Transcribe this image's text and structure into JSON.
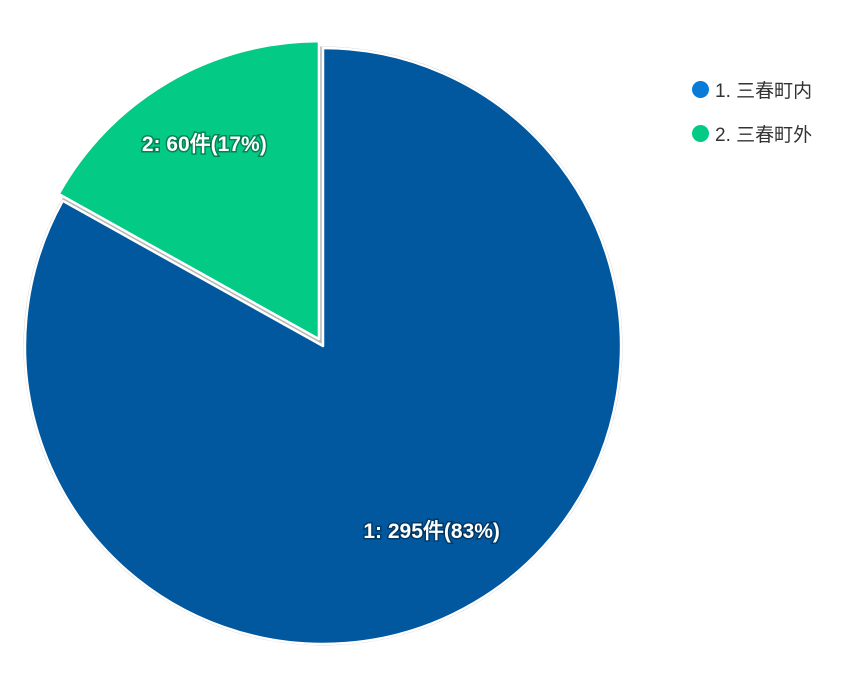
{
  "chart_data": {
    "type": "pie",
    "slices": [
      {
        "id": "1",
        "name": "三春町内",
        "value": 295,
        "percent": 83,
        "color": "#02589E",
        "legend_color": "#0A7BD6",
        "label": "1: 295件(83%)",
        "legend": "1. 三春町内"
      },
      {
        "id": "2",
        "name": "三春町外",
        "value": 60,
        "percent": 17,
        "color": "#03CA85",
        "legend_color": "#03CA85",
        "label": "2: 60件(17%)",
        "legend": "2. 三春町外"
      }
    ],
    "legend_position": "top-right"
  }
}
